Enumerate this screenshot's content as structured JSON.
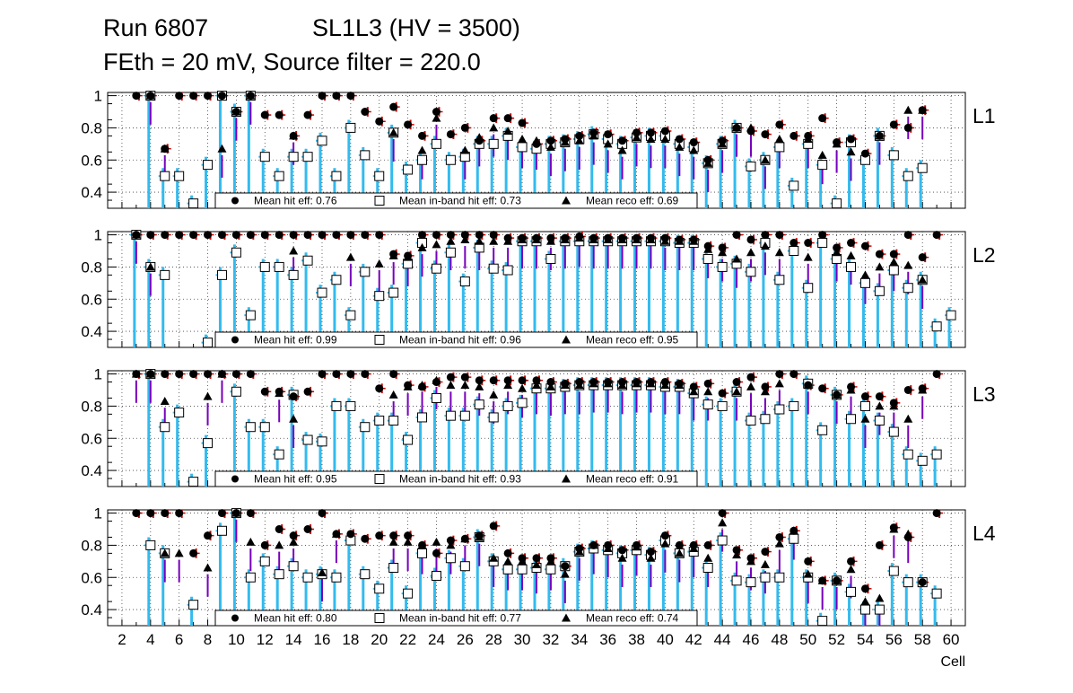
{
  "header": {
    "run": "Run 6807",
    "chamber": "SL1L3 (HV = 3500)",
    "settings": "FEth = 20 mV, Source filter = 220.0"
  },
  "chart_data": {
    "type": "scatter",
    "xlabel": "Cell",
    "xlim": [
      1,
      61
    ],
    "ylim": [
      0.3,
      1.02
    ],
    "x_ticks": [
      2,
      4,
      6,
      8,
      10,
      12,
      14,
      16,
      18,
      20,
      22,
      24,
      26,
      28,
      30,
      32,
      34,
      36,
      38,
      40,
      42,
      44,
      46,
      48,
      50,
      52,
      54,
      56,
      58,
      60
    ],
    "x_tick_labels": [
      "2",
      "4",
      "6",
      "8",
      "10",
      "12",
      "14",
      "16",
      "18",
      "20",
      "22",
      "24",
      "26",
      "28",
      "30",
      "32",
      "34",
      "36",
      "38",
      "40",
      "42",
      "44",
      "46",
      "48",
      "50",
      "52",
      "54",
      "56",
      "58",
      "60"
    ],
    "y_ticks": [
      0.4,
      0.6,
      0.8,
      1.0
    ],
    "y_tick_labels": [
      "0.4",
      "0.6",
      "0.8",
      "1"
    ],
    "grid": true,
    "colors": {
      "hit_error": "#cc0000",
      "inband_error": "#33bbee",
      "reco_error": "#7700bb",
      "frame": "#000000"
    },
    "legend_labels": {
      "hit": "Mean hit  eff:",
      "inband": "Mean in-band hit eff:",
      "reco": "Mean reco eff:"
    },
    "panels": [
      {
        "layer": "L1",
        "mean_hit": "0.76",
        "mean_inband": "0.73",
        "mean_reco": "0.69",
        "x": [
          3,
          4,
          5,
          6,
          7,
          8,
          9,
          10,
          11,
          12,
          13,
          14,
          15,
          16,
          17,
          18,
          19,
          20,
          21,
          22,
          23,
          24,
          25,
          26,
          27,
          28,
          29,
          30,
          31,
          32,
          33,
          34,
          35,
          36,
          37,
          38,
          39,
          40,
          41,
          42,
          43,
          44,
          45,
          46,
          47,
          48,
          49,
          50,
          51,
          52,
          53,
          54,
          55,
          56,
          57,
          58
        ],
        "hit": [
          1.0,
          1.0,
          0.67,
          1.0,
          1.0,
          1.0,
          1.0,
          0.9,
          1.0,
          0.88,
          0.88,
          0.75,
          0.88,
          1.0,
          1.0,
          1.0,
          0.9,
          0.84,
          0.93,
          0.82,
          0.75,
          0.9,
          0.76,
          0.8,
          0.72,
          0.86,
          0.86,
          0.83,
          0.7,
          0.72,
          0.73,
          0.75,
          0.77,
          0.76,
          0.72,
          0.77,
          0.77,
          0.78,
          0.73,
          0.71,
          0.6,
          0.72,
          0.8,
          0.78,
          0.76,
          0.82,
          0.75,
          0.75,
          0.86,
          0.71,
          0.73,
          0.64,
          0.75,
          0.82,
          0.8,
          0.91
        ],
        "inband": [
          null,
          1.0,
          0.5,
          0.5,
          0.33,
          0.57,
          1.0,
          0.9,
          1.0,
          0.62,
          0.5,
          0.62,
          0.62,
          0.72,
          0.5,
          0.8,
          0.63,
          0.5,
          0.77,
          0.54,
          0.6,
          0.7,
          0.6,
          0.62,
          0.7,
          0.7,
          0.75,
          0.68,
          0.67,
          0.7,
          0.71,
          0.73,
          0.76,
          0.73,
          0.7,
          0.74,
          0.75,
          0.75,
          0.7,
          0.68,
          0.58,
          0.7,
          0.8,
          0.56,
          0.6,
          0.68,
          0.44,
          0.7,
          0.57,
          0.33,
          0.71,
          0.6,
          0.75,
          0.63,
          0.5,
          0.55
        ],
        "reco": [
          null,
          1.0,
          0.67,
          null,
          null,
          null,
          0.67,
          0.9,
          1.0,
          null,
          null,
          0.75,
          null,
          null,
          null,
          null,
          null,
          null,
          0.77,
          null,
          0.66,
          0.86,
          null,
          0.66,
          0.74,
          0.8,
          0.78,
          0.73,
          0.72,
          0.68,
          0.71,
          0.72,
          0.75,
          0.7,
          0.66,
          0.74,
          0.73,
          0.73,
          0.68,
          0.66,
          0.58,
          0.7,
          0.8,
          0.8,
          0.6,
          0.73,
          null,
          0.73,
          0.63,
          0.7,
          0.65,
          null,
          0.75,
          null,
          0.91,
          0.91
        ]
      },
      {
        "layer": "L2",
        "mean_hit": "0.99",
        "mean_inband": "0.96",
        "mean_reco": "0.95",
        "x": [
          3,
          4,
          5,
          6,
          7,
          8,
          9,
          10,
          11,
          12,
          13,
          14,
          15,
          16,
          17,
          18,
          19,
          20,
          21,
          22,
          23,
          24,
          25,
          26,
          27,
          28,
          29,
          30,
          31,
          32,
          33,
          34,
          35,
          36,
          37,
          38,
          39,
          40,
          41,
          42,
          43,
          44,
          45,
          46,
          47,
          48,
          49,
          50,
          51,
          52,
          53,
          54,
          55,
          56,
          57,
          58,
          59,
          60
        ],
        "hit": [
          1.0,
          1.0,
          1.0,
          1.0,
          1.0,
          1.0,
          1.0,
          1.0,
          1.0,
          1.0,
          1.0,
          1.0,
          1.0,
          1.0,
          1.0,
          1.0,
          1.0,
          1.0,
          0.88,
          0.87,
          1.0,
          1.0,
          1.0,
          1.0,
          1.0,
          1.0,
          0.98,
          0.98,
          0.98,
          0.98,
          0.98,
          0.99,
          0.98,
          0.98,
          0.98,
          0.98,
          0.98,
          0.98,
          0.97,
          0.97,
          0.93,
          0.92,
          1.0,
          0.97,
          1.0,
          1.0,
          0.95,
          0.95,
          1.0,
          0.92,
          0.95,
          0.93,
          0.88,
          0.88,
          1.0,
          0.86,
          1.0,
          null
        ],
        "inband": [
          1.0,
          0.8,
          0.75,
          null,
          null,
          0.33,
          0.75,
          0.89,
          0.5,
          0.8,
          0.8,
          0.75,
          0.84,
          0.64,
          0.72,
          0.5,
          0.77,
          0.62,
          0.64,
          0.82,
          0.95,
          0.79,
          0.89,
          0.71,
          0.92,
          0.79,
          0.78,
          0.96,
          0.96,
          0.85,
          0.96,
          0.96,
          0.96,
          0.96,
          0.96,
          0.96,
          0.96,
          0.96,
          0.95,
          0.95,
          0.85,
          0.8,
          0.82,
          0.77,
          0.95,
          0.72,
          0.9,
          0.67,
          0.95,
          0.85,
          0.8,
          0.7,
          0.65,
          0.78,
          0.67,
          0.72,
          0.43,
          0.5
        ],
        "reco": [
          1.0,
          0.8,
          null,
          null,
          null,
          null,
          null,
          null,
          null,
          null,
          null,
          0.9,
          null,
          null,
          null,
          0.86,
          null,
          0.82,
          0.87,
          0.86,
          0.92,
          0.94,
          0.96,
          0.97,
          0.96,
          0.96,
          0.96,
          0.97,
          0.97,
          0.96,
          0.97,
          0.98,
          0.97,
          0.97,
          0.97,
          0.97,
          0.97,
          0.96,
          0.96,
          0.96,
          0.91,
          0.89,
          0.85,
          0.89,
          0.93,
          0.89,
          null,
          0.86,
          null,
          0.89,
          0.87,
          0.75,
          0.8,
          0.83,
          0.81,
          0.72,
          null,
          null
        ]
      },
      {
        "layer": "L3",
        "mean_hit": "0.95",
        "mean_inband": "0.93",
        "mean_reco": "0.91",
        "x": [
          3,
          4,
          5,
          6,
          7,
          8,
          9,
          10,
          11,
          12,
          13,
          14,
          15,
          16,
          17,
          18,
          19,
          20,
          21,
          22,
          23,
          24,
          25,
          26,
          27,
          28,
          29,
          30,
          31,
          32,
          33,
          34,
          35,
          36,
          37,
          38,
          39,
          40,
          41,
          42,
          43,
          44,
          45,
          46,
          47,
          48,
          49,
          50,
          51,
          52,
          53,
          54,
          55,
          56,
          57,
          58,
          59
        ],
        "hit": [
          1.0,
          1.0,
          1.0,
          1.0,
          1.0,
          1.0,
          1.0,
          1.0,
          1.0,
          0.89,
          0.89,
          0.86,
          0.89,
          1.0,
          1.0,
          1.0,
          1.0,
          0.91,
          1.0,
          0.93,
          0.92,
          0.95,
          0.98,
          0.98,
          0.96,
          0.96,
          0.96,
          0.96,
          0.96,
          0.95,
          0.94,
          0.95,
          0.95,
          0.95,
          0.95,
          0.95,
          0.95,
          0.95,
          0.94,
          0.92,
          0.94,
          0.88,
          0.95,
          0.98,
          0.92,
          1.0,
          1.0,
          0.93,
          0.91,
          0.87,
          0.92,
          0.86,
          0.86,
          0.82,
          0.9,
          0.91,
          1.0
        ],
        "inband": [
          null,
          1.0,
          0.67,
          0.76,
          0.33,
          0.57,
          null,
          0.89,
          0.67,
          0.67,
          0.5,
          0.87,
          0.59,
          0.58,
          0.8,
          0.8,
          0.67,
          0.71,
          0.71,
          0.59,
          0.73,
          0.85,
          0.74,
          0.74,
          0.81,
          0.73,
          0.8,
          0.82,
          0.91,
          0.91,
          0.92,
          0.93,
          0.93,
          0.93,
          0.93,
          0.93,
          0.93,
          0.92,
          0.92,
          0.88,
          0.81,
          0.8,
          0.89,
          0.71,
          0.72,
          0.78,
          0.8,
          0.94,
          0.65,
          0.87,
          0.72,
          0.8,
          0.71,
          0.64,
          0.5,
          0.46,
          0.5
        ],
        "reco": [
          1.0,
          1.0,
          0.83,
          null,
          null,
          0.86,
          1.0,
          null,
          null,
          null,
          0.88,
          0.72,
          null,
          null,
          null,
          null,
          null,
          null,
          0.87,
          0.92,
          0.93,
          0.96,
          0.93,
          0.93,
          0.92,
          0.87,
          0.93,
          0.91,
          0.93,
          0.92,
          0.93,
          0.93,
          0.94,
          0.94,
          0.93,
          0.94,
          0.94,
          0.93,
          0.93,
          0.89,
          0.89,
          null,
          0.89,
          0.92,
          0.89,
          0.94,
          null,
          0.93,
          null,
          0.87,
          0.9,
          0.72,
          0.8,
          0.8,
          0.72,
          0.9,
          null
        ]
      },
      {
        "layer": "L4",
        "mean_hit": "0.80",
        "mean_inband": "0.77",
        "mean_reco": "0.74",
        "x": [
          3,
          4,
          5,
          6,
          7,
          8,
          9,
          10,
          11,
          12,
          13,
          14,
          15,
          16,
          17,
          18,
          19,
          20,
          21,
          22,
          23,
          24,
          25,
          26,
          27,
          28,
          29,
          30,
          31,
          32,
          33,
          34,
          35,
          36,
          37,
          38,
          39,
          40,
          41,
          42,
          43,
          44,
          45,
          46,
          47,
          48,
          49,
          50,
          51,
          52,
          53,
          54,
          55,
          56,
          57,
          58,
          59,
          60
        ],
        "hit": [
          1.0,
          1.0,
          1.0,
          1.0,
          0.75,
          0.86,
          1.0,
          1.0,
          1.0,
          0.8,
          0.9,
          0.86,
          0.9,
          1.0,
          0.87,
          0.87,
          0.84,
          0.86,
          0.86,
          0.86,
          0.8,
          0.75,
          0.83,
          0.84,
          0.86,
          0.92,
          0.75,
          0.72,
          0.72,
          0.72,
          0.67,
          0.78,
          0.8,
          0.8,
          0.77,
          0.8,
          0.76,
          0.86,
          0.8,
          0.8,
          0.8,
          1.0,
          0.77,
          0.72,
          0.76,
          0.85,
          0.89,
          0.7,
          0.58,
          0.58,
          0.7,
          0.53,
          0.8,
          0.91,
          0.85,
          0.57,
          1.0,
          null
        ],
        "inband": [
          null,
          0.8,
          0.75,
          null,
          0.43,
          null,
          0.89,
          1.0,
          0.6,
          0.7,
          0.62,
          0.67,
          0.6,
          0.62,
          0.6,
          0.83,
          0.62,
          0.53,
          0.66,
          0.5,
          0.75,
          0.61,
          0.72,
          0.67,
          0.85,
          0.7,
          0.65,
          0.65,
          0.66,
          0.65,
          0.67,
          0.76,
          0.78,
          0.77,
          0.75,
          0.77,
          0.74,
          0.83,
          0.75,
          0.76,
          0.66,
          0.83,
          0.58,
          0.57,
          0.6,
          0.6,
          0.84,
          0.6,
          0.33,
          0.58,
          0.51,
          0.4,
          0.4,
          0.64,
          0.57,
          0.57,
          0.5,
          null
        ],
        "reco": [
          null,
          null,
          0.75,
          0.75,
          null,
          0.66,
          null,
          1.0,
          0.82,
          null,
          0.8,
          0.82,
          null,
          0.63,
          0.87,
          null,
          null,
          null,
          0.82,
          0.82,
          0.8,
          0.82,
          0.8,
          0.84,
          0.85,
          0.72,
          0.7,
          0.7,
          0.68,
          0.7,
          0.62,
          0.76,
          0.8,
          0.78,
          0.72,
          0.79,
          0.72,
          0.81,
          0.75,
          0.78,
          0.72,
          0.94,
          0.74,
          0.7,
          0.68,
          0.81,
          0.89,
          0.62,
          0.58,
          0.58,
          0.65,
          0.45,
          0.47,
          0.9,
          0.87,
          null,
          null,
          null
        ]
      }
    ]
  }
}
